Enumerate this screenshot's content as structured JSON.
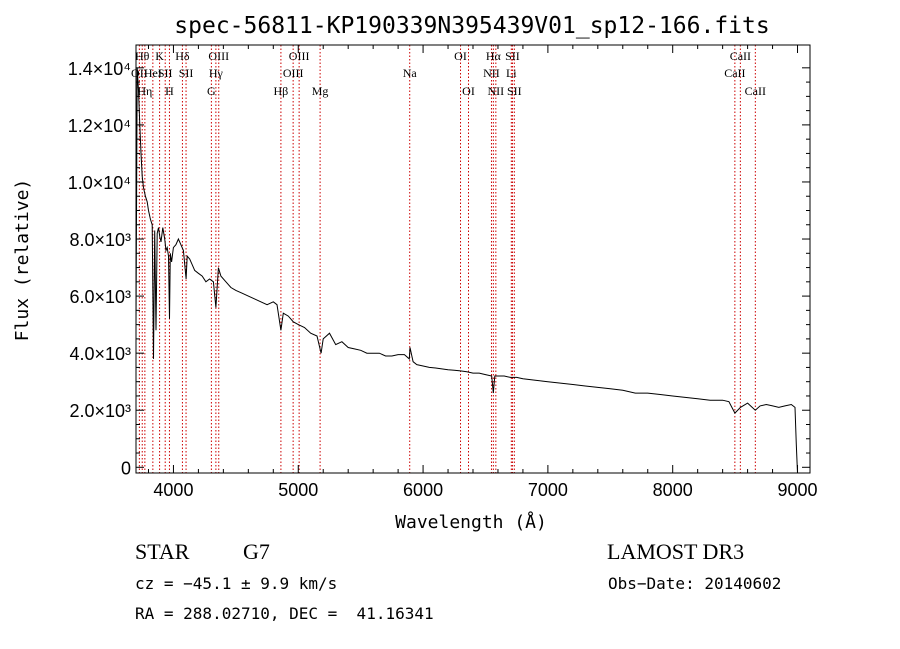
{
  "chart_data": {
    "type": "line",
    "title": "spec-56811-KP190339N395439V01_sp12-166.fits",
    "xlabel": "Wavelength (Å)",
    "ylabel": "Flux (relative)",
    "xlim": [
      3700,
      9100
    ],
    "ylim": [
      -200,
      14800
    ],
    "x_ticks": [
      {
        "value": 4000,
        "label": "4000"
      },
      {
        "value": 5000,
        "label": "5000"
      },
      {
        "value": 6000,
        "label": "6000"
      },
      {
        "value": 7000,
        "label": "7000"
      },
      {
        "value": 8000,
        "label": "8000"
      },
      {
        "value": 9000,
        "label": "9000"
      }
    ],
    "y_ticks": [
      {
        "value": 0,
        "label": "0"
      },
      {
        "value": 2000,
        "label": "2.0×10³"
      },
      {
        "value": 4000,
        "label": "4.0×10³"
      },
      {
        "value": 6000,
        "label": "6.0×10³"
      },
      {
        "value": 8000,
        "label": "8.0×10³"
      },
      {
        "value": 10000,
        "label": "1.0×10⁴"
      },
      {
        "value": 12000,
        "label": "1.2×10⁴"
      },
      {
        "value": 14000,
        "label": "1.4×10⁴"
      }
    ],
    "series": [
      {
        "name": "spectrum",
        "x": [
          3700,
          3710,
          3720,
          3730,
          3740,
          3750,
          3760,
          3775,
          3790,
          3800,
          3815,
          3830,
          3840,
          3850,
          3860,
          3870,
          3880,
          3890,
          3900,
          3915,
          3930,
          3940,
          3950,
          3960,
          3968,
          3975,
          3985,
          4000,
          4020,
          4040,
          4060,
          4080,
          4101,
          4110,
          4130,
          4150,
          4170,
          4200,
          4230,
          4260,
          4290,
          4320,
          4340,
          4360,
          4380,
          4420,
          4460,
          4500,
          4550,
          4600,
          4650,
          4700,
          4750,
          4800,
          4830,
          4861,
          4880,
          4920,
          4960,
          5000,
          5050,
          5100,
          5150,
          5183,
          5200,
          5250,
          5300,
          5350,
          5400,
          5450,
          5500,
          5550,
          5600,
          5650,
          5700,
          5750,
          5800,
          5850,
          5890,
          5895,
          5920,
          5950,
          6000,
          6050,
          6100,
          6150,
          6200,
          6250,
          6300,
          6350,
          6400,
          6450,
          6500,
          6550,
          6563,
          6575,
          6600,
          6650,
          6700,
          6750,
          6800,
          6900,
          7000,
          7100,
          7200,
          7300,
          7400,
          7500,
          7600,
          7700,
          7800,
          7900,
          8000,
          8100,
          8200,
          8300,
          8400,
          8450,
          8498,
          8542,
          8600,
          8662,
          8700,
          8750,
          8800,
          8850,
          8900,
          8950,
          8980,
          8990,
          9000
        ],
        "y": [
          5000,
          14000,
          13200,
          12100,
          11000,
          10200,
          9800,
          9500,
          9300,
          9000,
          8700,
          8500,
          3800,
          8300,
          4800,
          8200,
          8400,
          8100,
          7900,
          8400,
          8000,
          7600,
          7700,
          7400,
          5200,
          7500,
          7200,
          7700,
          7800,
          8000,
          7800,
          7600,
          6600,
          7400,
          7300,
          7100,
          6900,
          6800,
          6700,
          6500,
          6600,
          6500,
          5600,
          7000,
          6700,
          6500,
          6300,
          6200,
          6100,
          6000,
          5900,
          5800,
          5700,
          5800,
          5700,
          4800,
          5400,
          5300,
          5100,
          5000,
          4900,
          4700,
          4600,
          4000,
          4500,
          4700,
          4300,
          4400,
          4200,
          4150,
          4100,
          4000,
          4000,
          4000,
          3900,
          3900,
          3950,
          3950,
          3800,
          4200,
          3700,
          3600,
          3550,
          3500,
          3480,
          3450,
          3420,
          3400,
          3380,
          3350,
          3300,
          3300,
          3250,
          3200,
          2600,
          3200,
          3200,
          3200,
          3150,
          3150,
          3100,
          3050,
          3000,
          2950,
          2900,
          2850,
          2800,
          2750,
          2700,
          2600,
          2600,
          2550,
          2500,
          2450,
          2400,
          2350,
          2350,
          2300,
          1900,
          2100,
          2250,
          2000,
          2150,
          2200,
          2150,
          2100,
          2150,
          2200,
          2100,
          800,
          -200
        ]
      }
    ],
    "lines": [
      {
        "x": 3727,
        "label": "OII",
        "row": 1
      },
      {
        "x": 3750,
        "label": "Hθ",
        "row": 0
      },
      {
        "x": 3771,
        "label": "Hη",
        "row": 2
      },
      {
        "x": 3835,
        "label": "HeI",
        "row": 1
      },
      {
        "x": 3889,
        "label": "K",
        "row": 0
      },
      {
        "x": 3934,
        "label": "SII",
        "row": 1
      },
      {
        "x": 3968,
        "label": "H",
        "row": 2
      },
      {
        "x": 4072,
        "label": "Hδ",
        "row": 0
      },
      {
        "x": 4101,
        "label": "SII",
        "row": 1
      },
      {
        "x": 4304,
        "label": "G",
        "row": 2
      },
      {
        "x": 4340,
        "label": "Hγ",
        "row": 1
      },
      {
        "x": 4363,
        "label": "OIII",
        "row": 0
      },
      {
        "x": 4861,
        "label": "Hβ",
        "row": 2
      },
      {
        "x": 4959,
        "label": "OIII",
        "row": 1
      },
      {
        "x": 5007,
        "label": "OIII",
        "row": 0
      },
      {
        "x": 5175,
        "label": "Mg",
        "row": 2
      },
      {
        "x": 5893,
        "label": "Na",
        "row": 1
      },
      {
        "x": 6300,
        "label": "OI",
        "row": 0
      },
      {
        "x": 6364,
        "label": "OI",
        "row": 2
      },
      {
        "x": 6548,
        "label": "NII",
        "row": 1
      },
      {
        "x": 6563,
        "label": "Hα",
        "row": 0
      },
      {
        "x": 6583,
        "label": "NII",
        "row": 2
      },
      {
        "x": 6707,
        "label": "Li",
        "row": 1
      },
      {
        "x": 6716,
        "label": "SII",
        "row": 0
      },
      {
        "x": 6731,
        "label": "SII",
        "row": 2
      },
      {
        "x": 8498,
        "label": "CaII",
        "row": 1
      },
      {
        "x": 8542,
        "label": "CaII",
        "row": 0
      },
      {
        "x": 8662,
        "label": "CaII",
        "row": 2
      }
    ]
  },
  "info": {
    "object_class": "STAR",
    "subclass": "G7",
    "survey": "LAMOST DR3",
    "cz": "cz = −45.1 ± 9.9 km/s",
    "obs_date": "Obs−Date: 20140602",
    "coords": "RA = 288.02710, DEC =  41.16341"
  },
  "colors": {
    "spectrum": "#000000",
    "line_marker": "#cc0000",
    "axis": "#000000"
  }
}
